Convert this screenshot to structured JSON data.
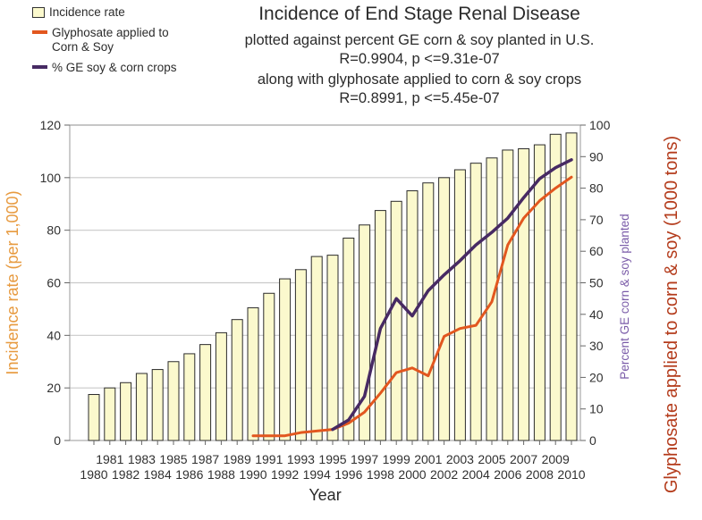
{
  "header": {
    "title": "Incidence of End Stage Renal Disease",
    "sub1": "plotted against percent GE corn & soy planted in U.S.",
    "sub2": "R=0.9904, p <=9.31e-07",
    "sub3": "along with glyphosate applied to corn & soy crops",
    "sub4": "R=0.8991, p <=5.45e-07"
  },
  "legend": {
    "items": [
      {
        "label": "Incidence rate",
        "swatch": "bar",
        "color": "#FBF9CD",
        "border": "#333333"
      },
      {
        "label": "Glyphosate applied to Corn & Soy",
        "swatch": "line",
        "color": "#E2571F"
      },
      {
        "label": "% GE soy & corn crops",
        "swatch": "line",
        "color": "#472A63"
      }
    ]
  },
  "chart_data": {
    "type": "bar",
    "x_axis": {
      "label": "Year",
      "min": 1980,
      "max": 2010
    },
    "left_axis": {
      "label": "Incidence rate (per 1,000)",
      "min": 0,
      "max": 120,
      "step": 20,
      "color": "#E79A3F"
    },
    "right_axis": {
      "min": 0,
      "max": 100,
      "step": 10
    },
    "right_labels": [
      {
        "text": "Percent GE corn & soy planted",
        "color": "#7A5BA8"
      },
      {
        "text": "Glyphosate applied to corn & soy (1000 tons)",
        "color": "#B43C1C"
      }
    ],
    "series": [
      {
        "name": "Incidence rate",
        "type": "bar",
        "axis": "left",
        "color": "#FBF9CD",
        "x_start": 1980,
        "values": [
          17.5,
          20,
          22,
          25.5,
          27,
          30,
          33,
          36.5,
          41,
          46,
          50.5,
          56,
          61.5,
          65,
          70,
          70.5,
          77,
          82,
          87.5,
          91,
          95,
          98,
          100,
          103,
          105.5,
          107.5,
          110.5,
          111,
          112.5,
          116.5,
          117
        ]
      },
      {
        "name": "Glyphosate applied to Corn & Soy",
        "type": "line",
        "axis": "right",
        "color": "#E2571F",
        "x_start": 1990,
        "values": [
          1.5,
          1.5,
          1.5,
          2.5,
          3,
          3.5,
          5.5,
          9,
          15,
          21.5,
          23,
          20.5,
          33,
          35.5,
          36.5,
          44,
          62,
          70.5,
          76,
          80,
          83.5
        ]
      },
      {
        "name": "% GE soy & corn crops",
        "type": "line",
        "axis": "right",
        "color": "#472A63",
        "x_start": 1995,
        "values": [
          3.5,
          6.5,
          14,
          35.5,
          45,
          39.5,
          47.5,
          52.5,
          57,
          62,
          66,
          70.5,
          77,
          83,
          86.5,
          89
        ]
      }
    ],
    "grid": "horizontal",
    "legend_position": "top-left"
  }
}
